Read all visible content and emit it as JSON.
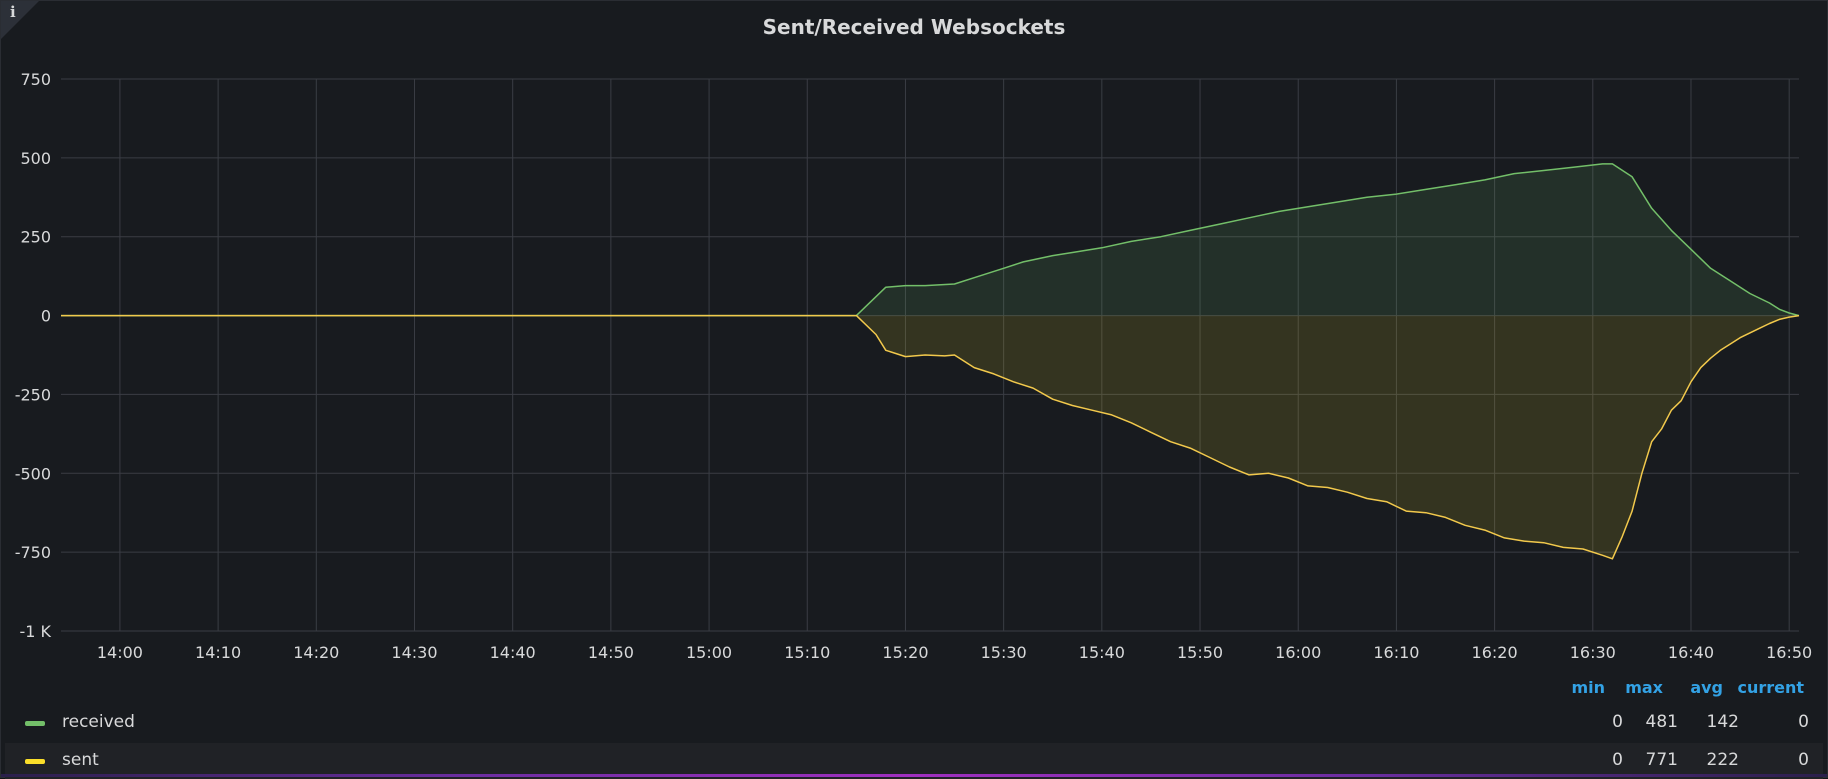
{
  "panel": {
    "title": "Sent/Received Websockets",
    "info_icon": "info-icon"
  },
  "colors": {
    "received": "#73bf69",
    "sent": "#fade2a",
    "received_line": "#73bf69",
    "sent_line": "#f2c94c",
    "legend_header": "#33a2e5",
    "grid": "#3a3d44",
    "text": "#d8d9da"
  },
  "chart_data": {
    "type": "area",
    "title": "Sent/Received Websockets",
    "xlabel": "",
    "ylabel": "",
    "ylim": [
      -1000,
      750
    ],
    "y_ticks": [
      750,
      500,
      250,
      0,
      -250,
      -500,
      -750,
      -1000
    ],
    "y_tick_labels": [
      "750",
      "500",
      "250",
      "0",
      "-250",
      "-500",
      "-750",
      "-1 K"
    ],
    "x_ticks": [
      "14:00",
      "14:10",
      "14:20",
      "14:30",
      "14:40",
      "14:50",
      "15:00",
      "15:10",
      "15:20",
      "15:30",
      "15:40",
      "15:50",
      "16:00",
      "16:10",
      "16:20",
      "16:30",
      "16:40",
      "16:50"
    ],
    "x_range_minutes": [
      834,
      1011
    ],
    "grid": true,
    "legend_placement": "bottom",
    "series": [
      {
        "name": "received",
        "x": [
          "13:54",
          "15:15",
          "15:18",
          "15:20",
          "15:22",
          "15:25",
          "15:27",
          "15:30",
          "15:32",
          "15:35",
          "15:37",
          "15:40",
          "15:43",
          "15:46",
          "15:49",
          "15:52",
          "15:55",
          "15:58",
          "16:01",
          "16:04",
          "16:07",
          "16:10",
          "16:13",
          "16:16",
          "16:19",
          "16:22",
          "16:25",
          "16:28",
          "16:31",
          "16:32",
          "16:34",
          "16:36",
          "16:38",
          "16:40",
          "16:42",
          "16:44",
          "16:46",
          "16:48",
          "16:49",
          "16:50",
          "16:51"
        ],
        "values": [
          0,
          0,
          90,
          95,
          95,
          100,
          120,
          150,
          170,
          190,
          200,
          215,
          235,
          250,
          270,
          290,
          310,
          330,
          345,
          360,
          375,
          385,
          400,
          415,
          430,
          450,
          460,
          470,
          481,
          481,
          440,
          340,
          270,
          210,
          150,
          110,
          70,
          40,
          20,
          8,
          0
        ]
      },
      {
        "name": "sent",
        "x": [
          "13:54",
          "15:15",
          "15:17",
          "15:18",
          "15:20",
          "15:22",
          "15:24",
          "15:25",
          "15:27",
          "15:29",
          "15:31",
          "15:33",
          "15:35",
          "15:37",
          "15:39",
          "15:41",
          "15:43",
          "15:45",
          "15:47",
          "15:49",
          "15:51",
          "15:53",
          "15:55",
          "15:57",
          "15:59",
          "16:01",
          "16:03",
          "16:05",
          "16:07",
          "16:09",
          "16:11",
          "16:13",
          "16:15",
          "16:17",
          "16:19",
          "16:21",
          "16:23",
          "16:25",
          "16:27",
          "16:29",
          "16:31",
          "16:32",
          "16:33",
          "16:34",
          "16:35",
          "16:36",
          "16:37",
          "16:38",
          "16:39",
          "16:40",
          "16:41",
          "16:42",
          "16:43",
          "16:44",
          "16:45",
          "16:46",
          "16:47",
          "16:48",
          "16:49",
          "16:50",
          "16:51"
        ],
        "values": [
          0,
          0,
          -60,
          -110,
          -130,
          -125,
          -128,
          -125,
          -165,
          -185,
          -210,
          -230,
          -265,
          -285,
          -300,
          -315,
          -340,
          -370,
          -400,
          -420,
          -450,
          -480,
          -505,
          -500,
          -515,
          -540,
          -545,
          -560,
          -580,
          -590,
          -620,
          -625,
          -640,
          -665,
          -680,
          -705,
          -715,
          -720,
          -735,
          -740,
          -760,
          -771,
          -700,
          -620,
          -500,
          -400,
          -360,
          -300,
          -270,
          -210,
          -165,
          -135,
          -110,
          -90,
          -70,
          -55,
          -40,
          -25,
          -12,
          -5,
          0
        ]
      }
    ]
  },
  "legend": {
    "headers": [
      "min",
      "max",
      "avg",
      "current"
    ],
    "rows": [
      {
        "name": "received",
        "min": "0",
        "max": "481",
        "avg": "142",
        "current": "0"
      },
      {
        "name": "sent",
        "min": "0",
        "max": "771",
        "avg": "222",
        "current": "0"
      }
    ]
  }
}
